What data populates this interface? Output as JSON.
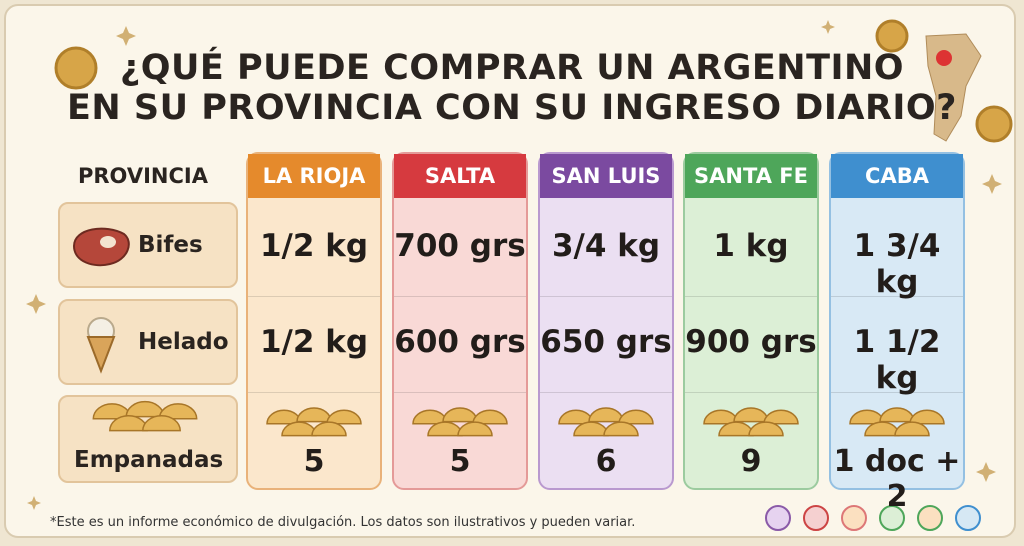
{
  "header": {
    "title_line1": "¿QUÉ PUEDE COMPRAR UN ARGENTINO",
    "title_line2": "EN SU PROVINCIA CON SU INGRESO DIARIO?"
  },
  "table": {
    "corner": "PROVINCIA",
    "columns": [
      "LA RIOJA",
      "SALTA",
      "SAN LUIS",
      "SANTA FE",
      "CABA"
    ],
    "rows": [
      {
        "label": "Bifes",
        "cells": [
          "1/2 kg",
          "700 grs",
          "3/4 kg",
          "1 kg",
          "1 3/4 kg"
        ]
      },
      {
        "label": "Helado",
        "cells": [
          "1/2 kg",
          "600 grs",
          "650 grs",
          "900 grs",
          "1 1/2 kg"
        ]
      },
      {
        "label": "Empanadas",
        "cells": [
          "5",
          "5",
          "6",
          "9",
          "1 doc + 2"
        ]
      }
    ]
  },
  "footnote": "*Este es un informe económico de divulgación. Los datos son ilustrativos y pueden variar."
}
